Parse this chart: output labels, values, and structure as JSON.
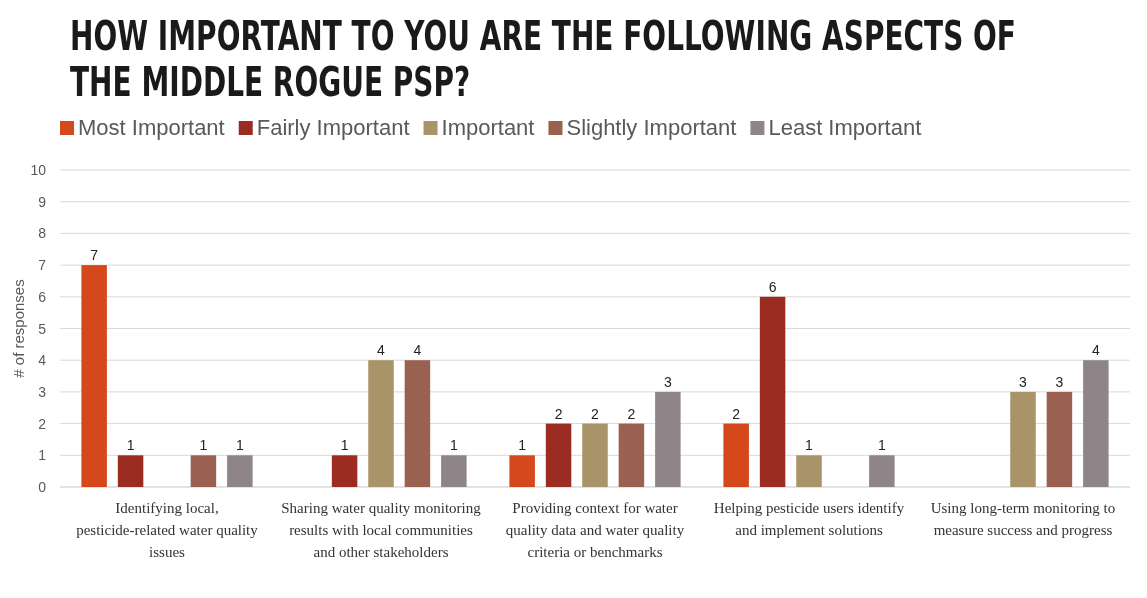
{
  "chart_data": {
    "type": "bar",
    "title": "HOW IMPORTANT TO YOU ARE THE FOLLOWING ASPECTS OF THE MIDDLE ROGUE PSP?",
    "ylabel": "# of responses",
    "categories": [
      "Identifying local, pesticide-related water quality issues",
      "Sharing water quality monitoring results with local communities and other stakeholders",
      "Providing context for water quality data and water quality criteria or benchmarks",
      "Helping pesticide users identify and implement solutions",
      "Using long-term monitoring to measure success and progress"
    ],
    "series": [
      {
        "name": "Most Important",
        "color": "#d5481b",
        "values": [
          7,
          null,
          1,
          2,
          null
        ]
      },
      {
        "name": "Fairly Important",
        "color": "#9b2c22",
        "values": [
          1,
          1,
          2,
          6,
          null
        ]
      },
      {
        "name": "Important",
        "color": "#a89468",
        "values": [
          null,
          4,
          2,
          1,
          3
        ]
      },
      {
        "name": "Slightly Important",
        "color": "#9a6150",
        "values": [
          1,
          4,
          2,
          null,
          3
        ]
      },
      {
        "name": "Least Important",
        "color": "#8f8588",
        "values": [
          1,
          1,
          3,
          1,
          4
        ]
      }
    ],
    "ylim": [
      0,
      10
    ],
    "yticks": [
      0,
      1,
      2,
      3,
      4,
      5,
      6,
      7,
      8,
      9,
      10
    ],
    "grid": "y",
    "legend": "top",
    "data_labels": true
  }
}
